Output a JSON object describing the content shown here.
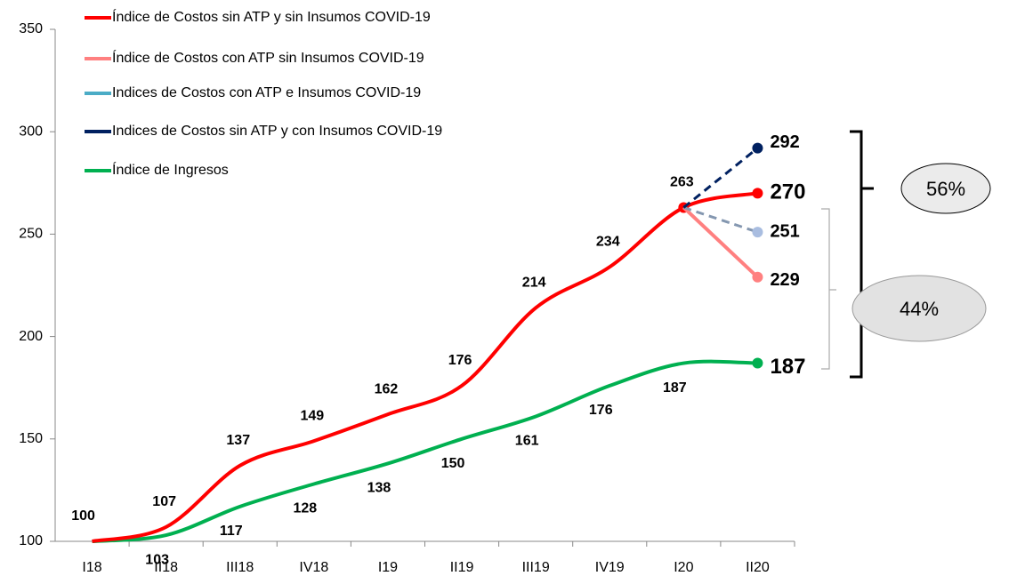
{
  "chart_data": {
    "type": "line",
    "categories": [
      "I18",
      "II18",
      "III18",
      "IV18",
      "I19",
      "II19",
      "III19",
      "IV19",
      "I20",
      "II20"
    ],
    "series": [
      {
        "name": "Índice de Costos sin ATP y sin Insumos COVID-19",
        "color": "#ff0000",
        "values": [
          100,
          107,
          137,
          149,
          162,
          176,
          214,
          234,
          263,
          270
        ]
      },
      {
        "name": "Índice de Costos con ATP sin Insumos COVID-19",
        "color": "#ff8080",
        "values": [
          null,
          null,
          null,
          null,
          null,
          null,
          null,
          null,
          263,
          229
        ]
      },
      {
        "name": "Indices de Costos con ATP e Insumos COVID-19",
        "color": "#4bacc6",
        "line_color": "#8497b0",
        "label_color": "#8ea9f0",
        "dashed": true,
        "values": [
          null,
          null,
          null,
          null,
          null,
          null,
          null,
          null,
          263,
          251
        ]
      },
      {
        "name": "Indices de Costos sin ATP y con Insumos COVID-19",
        "color": "#002060",
        "dashed": true,
        "values": [
          null,
          null,
          null,
          null,
          null,
          null,
          null,
          null,
          263,
          292
        ]
      },
      {
        "name": "Índice de Ingresos",
        "color": "#00b050",
        "values": [
          100,
          103,
          117,
          128,
          138,
          150,
          161,
          176,
          187,
          187
        ]
      }
    ],
    "ylim": [
      100,
      350
    ],
    "yticks": [
      100,
      150,
      200,
      250,
      300,
      350
    ],
    "annotations": [
      "56%",
      "44%"
    ]
  }
}
